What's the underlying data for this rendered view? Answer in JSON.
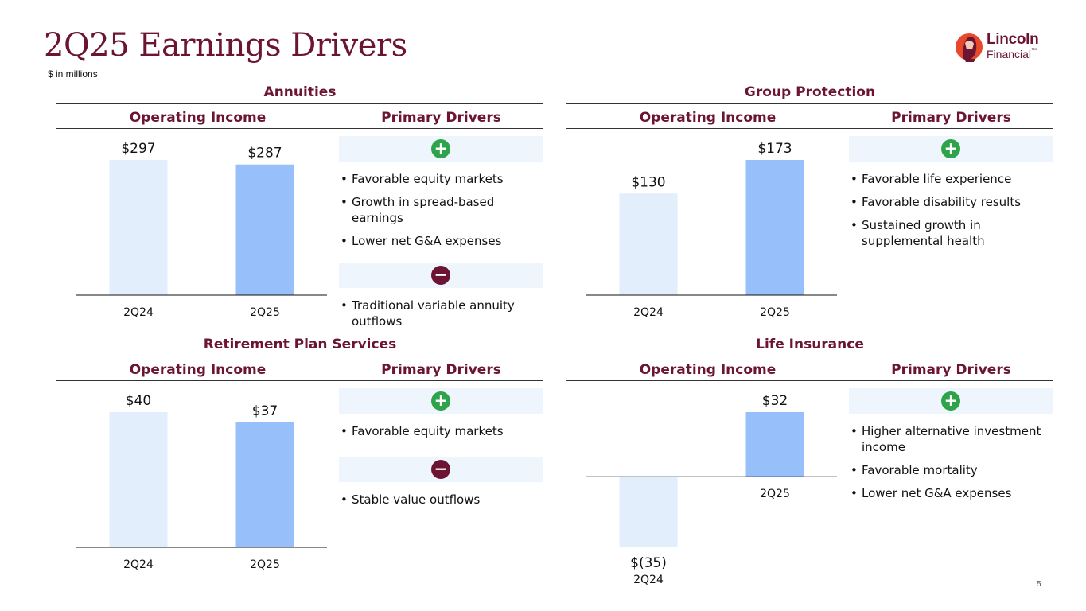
{
  "page": {
    "title": "2Q25 Earnings Drivers",
    "subtitle": "$ in millions",
    "page_number": "5",
    "logo": {
      "line1": "Lincoln",
      "line2": "Financial",
      "tm": "™"
    }
  },
  "colors": {
    "brand": "#6b1533",
    "bar_prior": "#e2eefb",
    "bar_current": "#97bffa",
    "plus": "#2ea34a",
    "minus": "#6b1533"
  },
  "panels": [
    {
      "title": "Annuities",
      "col_left": "Operating Income",
      "col_right": "Primary Drivers",
      "positive_drivers": [
        "Favorable equity markets",
        "Growth in spread-based earnings",
        "Lower net G&A expenses"
      ],
      "negative_drivers": [
        "Traditional variable annuity outflows"
      ]
    },
    {
      "title": "Group Protection",
      "col_left": "Operating Income",
      "col_right": "Primary Drivers",
      "positive_drivers": [
        "Favorable life experience",
        "Favorable disability results",
        "Sustained growth in supplemental health"
      ],
      "negative_drivers": []
    },
    {
      "title": "Retirement Plan Services",
      "col_left": "Operating Income",
      "col_right": "Primary Drivers",
      "positive_drivers": [
        "Favorable equity markets"
      ],
      "negative_drivers": [
        "Stable value outflows"
      ]
    },
    {
      "title": "Life Insurance",
      "col_left": "Operating Income",
      "col_right": "Primary Drivers",
      "positive_drivers": [
        "Higher alternative investment income",
        "Favorable mortality",
        "Lower net G&A expenses"
      ],
      "negative_drivers": []
    }
  ],
  "chart_data": [
    {
      "type": "bar",
      "title": "Annuities",
      "ylabel": "Operating Income",
      "categories": [
        "2Q24",
        "2Q25"
      ],
      "values": [
        297,
        287
      ],
      "labels": [
        "$297",
        "$287"
      ],
      "ylim": [
        0,
        297
      ]
    },
    {
      "type": "bar",
      "title": "Group Protection",
      "ylabel": "Operating Income",
      "categories": [
        "2Q24",
        "2Q25"
      ],
      "values": [
        130,
        173
      ],
      "labels": [
        "$130",
        "$173"
      ],
      "ylim": [
        0,
        173
      ]
    },
    {
      "type": "bar",
      "title": "Retirement Plan Services",
      "ylabel": "Operating Income",
      "categories": [
        "2Q24",
        "2Q25"
      ],
      "values": [
        40,
        37
      ],
      "labels": [
        "$40",
        "$37"
      ],
      "ylim": [
        0,
        40
      ]
    },
    {
      "type": "bar",
      "title": "Life Insurance",
      "ylabel": "Operating Income",
      "categories": [
        "2Q24",
        "2Q25"
      ],
      "values": [
        -35,
        32
      ],
      "labels": [
        "$(35)",
        "$32"
      ],
      "ylim": [
        -35,
        32
      ]
    }
  ]
}
